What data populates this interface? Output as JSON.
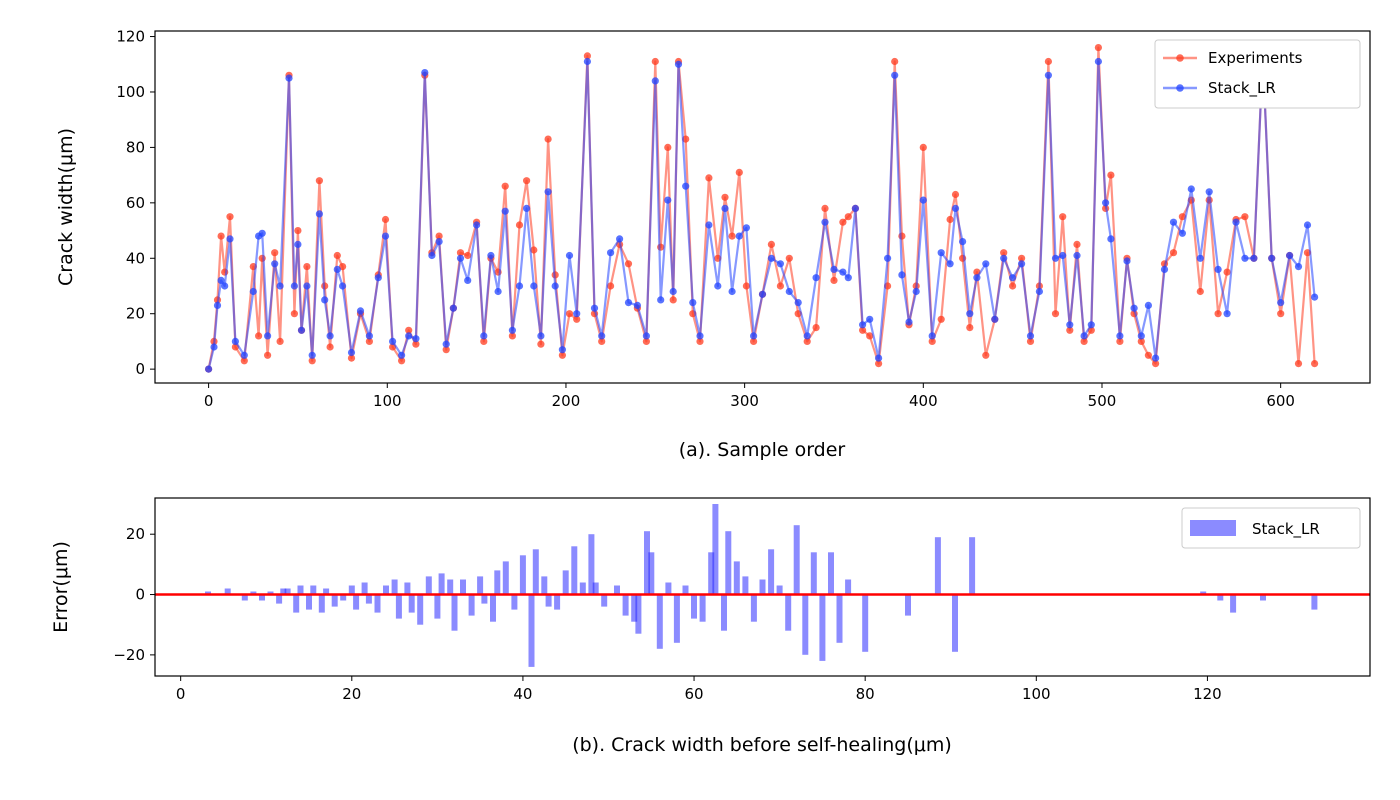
{
  "chart_data": [
    {
      "type": "line",
      "xlabel": "(a). Sample order",
      "ylabel": "Crack width(μm)",
      "xlim": [
        -30,
        650
      ],
      "ylim": [
        -5,
        122
      ],
      "xticks": [
        0,
        100,
        200,
        300,
        400,
        500,
        600
      ],
      "yticks": [
        0,
        20,
        40,
        60,
        80,
        100,
        120
      ],
      "legend_position": "top-right",
      "grid": false,
      "series": [
        {
          "name": "Experiments",
          "color": "#ff3b1f",
          "x": [
            0,
            3,
            5,
            7,
            9,
            12,
            15,
            20,
            25,
            28,
            30,
            33,
            37,
            40,
            45,
            48,
            50,
            52,
            55,
            58,
            62,
            65,
            68,
            72,
            75,
            80,
            85,
            90,
            95,
            99,
            103,
            108,
            112,
            116,
            121,
            125,
            129,
            133,
            137,
            141,
            145,
            150,
            154,
            158,
            162,
            166,
            170,
            174,
            178,
            182,
            186,
            190,
            194,
            198,
            202,
            206,
            212,
            216,
            220,
            225,
            230,
            235,
            240,
            245,
            250,
            253,
            257,
            260,
            263,
            267,
            271,
            275,
            280,
            285,
            289,
            293,
            297,
            301,
            305,
            310,
            315,
            320,
            325,
            330,
            335,
            340,
            345,
            350,
            355,
            358,
            362,
            366,
            370,
            375,
            380,
            384,
            388,
            392,
            396,
            400,
            405,
            410,
            415,
            418,
            422,
            426,
            430,
            435,
            440,
            445,
            450,
            455,
            460,
            465,
            470,
            474,
            478,
            482,
            486,
            490,
            494,
            498,
            502,
            505,
            510,
            514,
            518,
            522,
            526,
            530,
            535,
            540,
            545,
            550,
            555,
            560,
            565,
            570,
            575,
            580,
            585,
            590,
            595,
            600,
            605,
            610,
            615,
            619
          ],
          "values": [
            0,
            10,
            25,
            48,
            35,
            55,
            8,
            3,
            37,
            12,
            40,
            5,
            42,
            10,
            106,
            20,
            50,
            14,
            37,
            3,
            68,
            30,
            8,
            41,
            37,
            4,
            20,
            10,
            34,
            54,
            8,
            3,
            14,
            9,
            106,
            42,
            48,
            7,
            22,
            42,
            41,
            53,
            10,
            40,
            35,
            66,
            12,
            52,
            68,
            43,
            9,
            83,
            34,
            5,
            20,
            18,
            113,
            20,
            10,
            30,
            45,
            38,
            22,
            10,
            111,
            44,
            80,
            25,
            111,
            83,
            20,
            10,
            69,
            40,
            62,
            48,
            71,
            30,
            10,
            27,
            45,
            30,
            40,
            20,
            10,
            15,
            58,
            32,
            53,
            55,
            58,
            14,
            12,
            2,
            30,
            111,
            48,
            16,
            30,
            80,
            10,
            18,
            54,
            63,
            40,
            15,
            35,
            5,
            18,
            42,
            30,
            40,
            10,
            30,
            111,
            20,
            55,
            14,
            45,
            10,
            14,
            116,
            58,
            70,
            10,
            40,
            20,
            10,
            5,
            2,
            38,
            42,
            55,
            61,
            28,
            61,
            20,
            35,
            54,
            55,
            40,
            113,
            40,
            20,
            41,
            2,
            42,
            2
          ],
          "marker": "circle"
        },
        {
          "name": "Stack_LR",
          "color": "#2244ff",
          "x": [
            0,
            3,
            5,
            7,
            9,
            12,
            15,
            20,
            25,
            28,
            30,
            33,
            37,
            40,
            45,
            48,
            50,
            52,
            55,
            58,
            62,
            65,
            68,
            72,
            75,
            80,
            85,
            90,
            95,
            99,
            103,
            108,
            112,
            116,
            121,
            125,
            129,
            133,
            137,
            141,
            145,
            150,
            154,
            158,
            162,
            166,
            170,
            174,
            178,
            182,
            186,
            190,
            194,
            198,
            202,
            206,
            212,
            216,
            220,
            225,
            230,
            235,
            240,
            245,
            250,
            253,
            257,
            260,
            263,
            267,
            271,
            275,
            280,
            285,
            289,
            293,
            297,
            301,
            305,
            310,
            315,
            320,
            325,
            330,
            335,
            340,
            345,
            350,
            355,
            358,
            362,
            366,
            370,
            375,
            380,
            384,
            388,
            392,
            396,
            400,
            405,
            410,
            415,
            418,
            422,
            426,
            430,
            435,
            440,
            445,
            450,
            455,
            460,
            465,
            470,
            474,
            478,
            482,
            486,
            490,
            494,
            498,
            502,
            505,
            510,
            514,
            518,
            522,
            526,
            530,
            535,
            540,
            545,
            550,
            555,
            560,
            565,
            570,
            575,
            580,
            585,
            590,
            595,
            600,
            605,
            610,
            615,
            619
          ],
          "values": [
            0,
            8,
            23,
            32,
            30,
            47,
            10,
            5,
            28,
            48,
            49,
            12,
            38,
            30,
            105,
            30,
            45,
            14,
            30,
            5,
            56,
            25,
            12,
            36,
            30,
            6,
            21,
            12,
            33,
            48,
            10,
            5,
            12,
            11,
            107,
            41,
            46,
            9,
            22,
            40,
            32,
            52,
            12,
            41,
            28,
            57,
            14,
            30,
            58,
            30,
            12,
            64,
            30,
            7,
            41,
            20,
            111,
            22,
            12,
            42,
            47,
            24,
            23,
            12,
            104,
            25,
            61,
            28,
            110,
            66,
            24,
            12,
            52,
            30,
            58,
            28,
            48,
            51,
            12,
            27,
            40,
            38,
            28,
            24,
            12,
            33,
            53,
            36,
            35,
            33,
            58,
            16,
            18,
            4,
            40,
            106,
            34,
            17,
            28,
            61,
            12,
            42,
            38,
            58,
            46,
            20,
            33,
            38,
            18,
            40,
            33,
            38,
            12,
            28,
            106,
            40,
            41,
            16,
            41,
            12,
            16,
            111,
            60,
            47,
            12,
            39,
            22,
            12,
            23,
            4,
            36,
            53,
            49,
            65,
            40,
            64,
            36,
            20,
            53,
            40,
            40,
            113,
            40,
            24,
            41,
            37,
            52,
            26
          ],
          "marker": "circle"
        }
      ]
    },
    {
      "type": "bar",
      "xlabel": "(b). Crack width before self-healing(μm)",
      "ylabel": "Error(μm)",
      "xlim": [
        -3,
        139
      ],
      "ylim": [
        -27,
        32
      ],
      "xticks": [
        0,
        20,
        40,
        60,
        80,
        100,
        120
      ],
      "yticks": [
        -20,
        0,
        20
      ],
      "legend_position": "top-right",
      "grid": false,
      "reference_line": {
        "y": 0,
        "color": "#ff0000"
      },
      "series": [
        {
          "name": "Stack_LR",
          "color": "#2b2bff",
          "x": [
            3.2,
            5.5,
            7.5,
            8.5,
            9.5,
            10.5,
            11.5,
            12,
            12.5,
            13.5,
            14,
            15,
            15.5,
            16.5,
            17,
            18,
            19,
            20,
            20.5,
            21.5,
            22,
            23,
            24,
            25,
            25.5,
            26.5,
            27,
            28,
            29,
            30,
            30.5,
            31.5,
            32,
            33,
            34,
            35,
            35.5,
            36.5,
            37,
            38,
            39,
            40,
            41,
            41.5,
            42.5,
            43,
            44,
            45,
            46,
            47,
            48,
            48.5,
            49.5,
            50,
            51,
            52,
            53,
            53.5,
            54.5,
            55,
            56,
            57,
            58,
            59,
            60,
            61,
            62,
            62.5,
            63.5,
            64,
            65,
            66,
            67,
            68,
            69,
            70,
            71,
            72,
            73,
            74,
            75,
            76,
            77,
            78,
            80,
            85,
            88.5,
            90.5,
            92.5,
            119.5,
            121.5,
            123,
            126.5,
            132.5
          ],
          "values": [
            1,
            2,
            -2,
            1,
            -2,
            1,
            -3,
            2,
            2,
            -6,
            3,
            -5,
            3,
            -6,
            2,
            -4,
            -2,
            3,
            -5,
            4,
            -3,
            -6,
            3,
            5,
            -8,
            4,
            -6,
            -10,
            6,
            -8,
            7,
            5,
            -12,
            5,
            -7,
            6,
            -3,
            -9,
            8,
            11,
            -5,
            13,
            -24,
            15,
            6,
            -4,
            -5,
            8,
            16,
            4,
            20,
            4,
            -4,
            0,
            3,
            -7,
            -9,
            -13,
            21,
            14,
            -18,
            4,
            -16,
            3,
            -8,
            -9,
            14,
            30,
            -12,
            21,
            11,
            6,
            -9,
            5,
            15,
            3,
            -12,
            23,
            -20,
            14,
            -22,
            14,
            -16,
            5,
            -19,
            -7,
            19,
            -19,
            19,
            1,
            -2,
            -6,
            -2,
            -5
          ]
        }
      ]
    }
  ]
}
